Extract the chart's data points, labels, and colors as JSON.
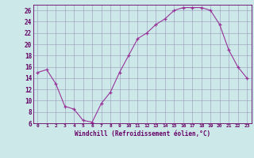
{
  "x": [
    0,
    1,
    2,
    3,
    4,
    5,
    6,
    7,
    8,
    9,
    10,
    11,
    12,
    13,
    14,
    15,
    16,
    17,
    18,
    19,
    20,
    21,
    22,
    23
  ],
  "y": [
    15,
    15.5,
    13,
    9,
    8.5,
    6.5,
    6.2,
    9.5,
    11.5,
    15,
    18,
    21,
    22,
    23.5,
    24.5,
    26,
    26.5,
    26.5,
    26.5,
    26,
    23.5,
    19,
    16,
    14
  ],
  "xlabel": "Windchill (Refroidissement éolien,°C)",
  "ylim": [
    6,
    27
  ],
  "xlim": [
    -0.5,
    23.5
  ],
  "yticks": [
    6,
    8,
    10,
    12,
    14,
    16,
    18,
    20,
    22,
    24,
    26
  ],
  "xticks": [
    0,
    1,
    2,
    3,
    4,
    5,
    6,
    7,
    8,
    9,
    10,
    11,
    12,
    13,
    14,
    15,
    16,
    17,
    18,
    19,
    20,
    21,
    22,
    23
  ],
  "line_color": "#993399",
  "marker_color": "#993399",
  "bg_color": "#cce8e8",
  "grid_color": "#9999bb",
  "spine_color": "#660066",
  "tick_color": "#660066"
}
